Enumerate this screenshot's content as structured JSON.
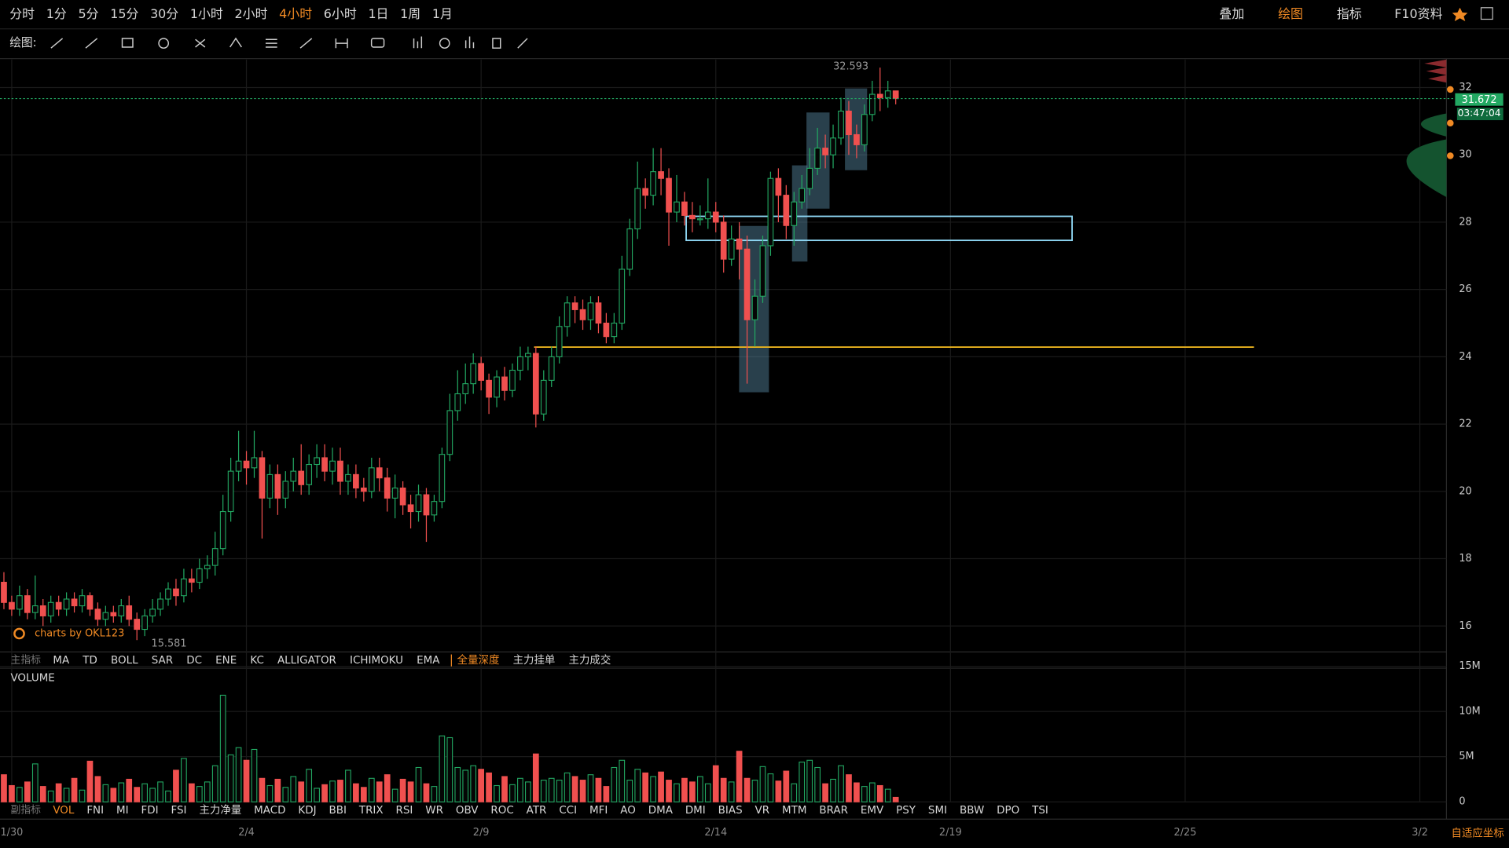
{
  "top_bar": {
    "timeframes": [
      "分时",
      "1分",
      "5分",
      "15分",
      "30分",
      "1小时",
      "2小时",
      "4小时",
      "6小时",
      "1日",
      "1周",
      "1月"
    ],
    "active_timeframe": 7,
    "tools": [
      "叠加",
      "绘图",
      "指标",
      "F10资料"
    ],
    "active_tool": 1
  },
  "drawing_bar": {
    "label": "绘图:"
  },
  "main_indicator_bar": {
    "label": "主指标",
    "indicators": [
      "MA",
      "TD",
      "BOLL",
      "SAR",
      "DC",
      "ENE",
      "KC",
      "ALLIGATOR",
      "ICHIMOKU",
      "EMA"
    ],
    "depth_tabs": [
      "全量深度",
      "主力挂单",
      "主力成交"
    ],
    "active_depth_tab": 0
  },
  "sub_indicator_bar": {
    "label": "副指标",
    "indicators": [
      "VOL",
      "FNI",
      "MI",
      "FDI",
      "FSI",
      "主力净量",
      "MACD",
      "KDJ",
      "BBI",
      "TRIX",
      "RSI",
      "WR",
      "OBV",
      "ROC",
      "ATR",
      "CCI",
      "MFI",
      "AO",
      "DMA",
      "DMI",
      "BIAS",
      "VR",
      "MTM",
      "BRAR",
      "EMV",
      "PSY",
      "SMI",
      "BBW",
      "DPO",
      "TSI"
    ],
    "active_indicator": 0
  },
  "chart_data": {
    "type": "candlestick",
    "watermark": "charts by OKL123",
    "countdown": "03:47:04",
    "axis_mode": "自适应坐标",
    "up_color": "#22a862",
    "down_color": "#f0504f",
    "xlim": [
      -0.5,
      184.4
    ],
    "xticks": [
      {
        "value": 1,
        "label": "1/30"
      },
      {
        "value": 31,
        "label": "2/4"
      },
      {
        "value": 61,
        "label": "2/9"
      },
      {
        "value": 91,
        "label": "2/14"
      },
      {
        "value": 121,
        "label": "2/19"
      },
      {
        "value": 151,
        "label": "2/25"
      },
      {
        "value": 181,
        "label": "3/2"
      }
    ],
    "ylim": [
      15.26,
      32.83
    ],
    "yticks": [
      16,
      18,
      20,
      22,
      24,
      26,
      28,
      30,
      32
    ],
    "grid": true,
    "candles": {
      "open": [
        17.3,
        16.7,
        16.5,
        16.9,
        16.4,
        16.6,
        16.3,
        16.7,
        16.5,
        16.8,
        16.6,
        16.9,
        16.5,
        16.2,
        16.4,
        16.3,
        16.6,
        16.2,
        15.9,
        16.3,
        16.5,
        16.8,
        17.1,
        16.9,
        17.4,
        17.3,
        17.7,
        17.8,
        18.3,
        19.4,
        20.6,
        20.9,
        20.7,
        21.0,
        19.8,
        20.5,
        19.8,
        20.3,
        20.6,
        20.2,
        20.8,
        21.0,
        20.6,
        20.9,
        20.3,
        20.5,
        20.1,
        20.0,
        20.7,
        20.4,
        19.8,
        20.1,
        19.6,
        19.4,
        19.9,
        19.3,
        19.7,
        21.1,
        22.4,
        22.9,
        23.2,
        23.8,
        23.3,
        22.8,
        23.4,
        23.0,
        23.6,
        24.0,
        24.1,
        22.3,
        23.3,
        24.0,
        24.9,
        25.6,
        25.4,
        25.1,
        25.6,
        25.0,
        24.6,
        25.0,
        26.6,
        27.8,
        29.0,
        28.8,
        29.5,
        29.3,
        28.3,
        28.6,
        28.2,
        28.1,
        28.1,
        28.3,
        28.0,
        26.9,
        27.5,
        27.2,
        25.1,
        25.8,
        27.3,
        29.3,
        28.8,
        27.9,
        28.6,
        29.0,
        29.6,
        30.2,
        30.0,
        30.5,
        31.3,
        30.6,
        30.3,
        31.2,
        31.8,
        31.7,
        31.9
      ],
      "high": [
        17.6,
        16.9,
        17.2,
        17.1,
        17.5,
        16.8,
        16.9,
        16.9,
        17.0,
        17.0,
        17.1,
        17.0,
        16.7,
        16.6,
        16.6,
        16.8,
        16.9,
        16.4,
        16.5,
        16.8,
        17.0,
        17.3,
        17.4,
        17.7,
        17.7,
        18.0,
        18.1,
        18.8,
        19.9,
        21.0,
        21.8,
        21.2,
        21.8,
        21.2,
        20.8,
        20.8,
        20.6,
        21.0,
        21.4,
        21.1,
        21.4,
        21.4,
        21.3,
        21.3,
        20.8,
        20.8,
        20.4,
        21.0,
        21.0,
        20.7,
        20.5,
        20.3,
        19.9,
        20.2,
        20.1,
        19.9,
        21.3,
        22.9,
        23.6,
        23.8,
        24.1,
        24.0,
        23.5,
        23.6,
        23.7,
        23.8,
        24.3,
        24.3,
        24.3,
        23.6,
        24.3,
        25.2,
        25.8,
        25.8,
        25.7,
        25.8,
        25.8,
        25.3,
        25.3,
        27.0,
        28.1,
        29.8,
        29.3,
        30.2,
        30.2,
        29.6,
        29.4,
        28.9,
        28.6,
        28.5,
        29.3,
        28.6,
        28.2,
        27.9,
        28.0,
        27.6,
        26.3,
        27.6,
        29.5,
        29.6,
        29.1,
        28.9,
        29.4,
        30.2,
        30.8,
        30.6,
        30.9,
        31.7,
        31.6,
        30.9,
        31.5,
        32.2,
        32.593,
        32.2,
        31.9
      ],
      "low": [
        16.5,
        16.3,
        16.3,
        16.2,
        16.2,
        16.0,
        16.1,
        16.3,
        16.3,
        16.4,
        16.4,
        16.3,
        16.0,
        16.0,
        16.1,
        16.1,
        16.0,
        15.581,
        15.7,
        16.1,
        16.3,
        16.6,
        16.6,
        16.7,
        17.0,
        17.1,
        17.4,
        17.5,
        18.1,
        19.1,
        20.3,
        20.2,
        20.4,
        18.6,
        19.5,
        19.3,
        19.5,
        20.0,
        19.9,
        19.9,
        20.4,
        20.3,
        20.2,
        19.9,
        19.9,
        19.8,
        19.7,
        19.8,
        20.0,
        19.4,
        19.2,
        19.3,
        18.9,
        19.1,
        18.5,
        19.1,
        19.5,
        20.9,
        22.1,
        22.6,
        22.9,
        23.0,
        22.3,
        22.5,
        22.7,
        22.8,
        23.3,
        23.6,
        21.9,
        22.1,
        23.1,
        23.8,
        24.6,
        25.0,
        24.8,
        24.8,
        24.7,
        24.4,
        24.4,
        24.8,
        26.4,
        27.5,
        28.4,
        28.5,
        28.8,
        27.3,
        28.0,
        27.9,
        27.7,
        27.9,
        27.8,
        27.7,
        26.5,
        26.7,
        26.3,
        23.2,
        24.3,
        25.6,
        27.0,
        28.0,
        27.5,
        27.3,
        28.4,
        28.8,
        29.4,
        29.6,
        29.6,
        30.3,
        30.0,
        29.9,
        30.1,
        31.0,
        31.3,
        31.4,
        31.5
      ],
      "close": [
        16.7,
        16.5,
        16.9,
        16.4,
        16.6,
        16.3,
        16.7,
        16.5,
        16.8,
        16.6,
        16.9,
        16.5,
        16.2,
        16.4,
        16.3,
        16.6,
        16.2,
        15.9,
        16.3,
        16.5,
        16.8,
        17.1,
        16.9,
        17.4,
        17.3,
        17.7,
        17.8,
        18.3,
        19.4,
        20.6,
        20.9,
        20.7,
        21.0,
        19.8,
        20.5,
        19.8,
        20.3,
        20.6,
        20.2,
        20.8,
        21.0,
        20.6,
        20.9,
        20.3,
        20.5,
        20.1,
        20.0,
        20.7,
        20.4,
        19.8,
        20.1,
        19.6,
        19.4,
        19.9,
        19.3,
        19.7,
        21.1,
        22.4,
        22.9,
        23.2,
        23.8,
        23.3,
        22.8,
        23.4,
        23.0,
        23.6,
        24.0,
        24.1,
        22.3,
        23.3,
        24.0,
        24.9,
        25.6,
        25.4,
        25.1,
        25.6,
        25.0,
        24.6,
        25.0,
        26.6,
        27.8,
        29.0,
        28.8,
        29.5,
        29.3,
        28.3,
        28.6,
        28.2,
        28.1,
        28.1,
        28.3,
        28.0,
        26.9,
        27.5,
        27.2,
        25.1,
        25.8,
        27.3,
        29.3,
        28.8,
        27.9,
        28.6,
        29.0,
        29.6,
        30.2,
        30.0,
        30.5,
        31.3,
        30.6,
        30.3,
        31.2,
        31.8,
        31.7,
        31.9,
        31.672
      ]
    },
    "volume": {
      "title": "VOLUME",
      "ylim": [
        0,
        15
      ],
      "yticks": [
        {
          "value": 15,
          "label": "15M"
        },
        {
          "value": 10,
          "label": "10M"
        },
        {
          "value": 5,
          "label": "5M"
        },
        0
      ],
      "values": [
        3.0,
        1.8,
        1.6,
        2.2,
        4.2,
        1.7,
        1.2,
        2.0,
        1.5,
        2.6,
        1.3,
        4.5,
        2.8,
        1.9,
        1.5,
        2.1,
        2.5,
        1.6,
        2.0,
        1.5,
        2.2,
        1.2,
        3.5,
        4.8,
        2.0,
        1.7,
        2.2,
        4.0,
        11.8,
        5.2,
        6.0,
        4.6,
        5.8,
        2.6,
        1.8,
        2.5,
        1.6,
        2.8,
        2.2,
        3.6,
        1.5,
        1.9,
        2.3,
        2.4,
        3.5,
        2.0,
        1.6,
        2.6,
        2.2,
        3.0,
        1.4,
        2.5,
        2.2,
        3.8,
        2.0,
        1.7,
        7.3,
        7.1,
        3.8,
        3.5,
        4.0,
        3.6,
        3.2,
        1.8,
        2.8,
        1.9,
        2.6,
        2.2,
        5.3,
        2.4,
        2.6,
        2.4,
        3.2,
        2.8,
        2.4,
        3.0,
        2.6,
        1.7,
        3.8,
        4.6,
        2.4,
        3.6,
        3.2,
        2.8,
        3.3,
        2.4,
        2.0,
        2.6,
        2.2,
        2.8,
        2.0,
        4.0,
        2.6,
        2.2,
        5.6,
        2.6,
        2.4,
        3.9,
        3.1,
        2.3,
        3.4,
        2.0,
        4.4,
        4.6,
        3.8,
        2.0,
        2.5,
        4.0,
        3.0,
        2.1,
        1.7,
        2.1,
        1.8,
        1.4,
        0.5
      ]
    }
  }
}
